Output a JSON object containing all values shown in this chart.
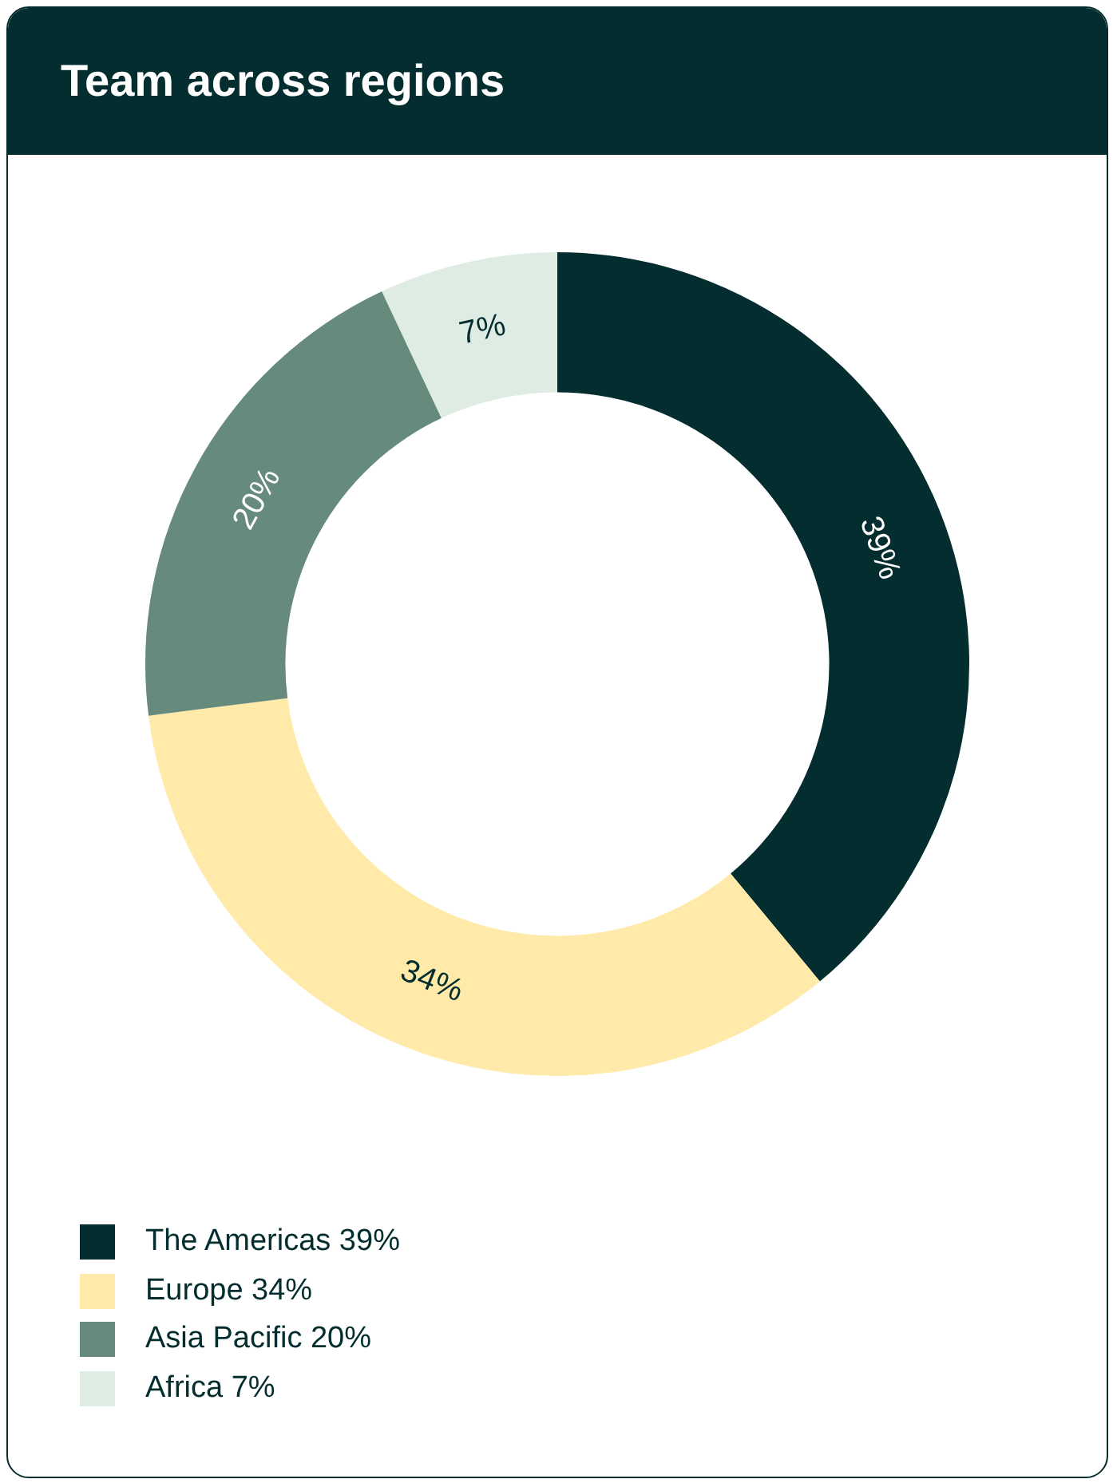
{
  "chart_data": {
    "type": "donut",
    "title": "Team across regions",
    "categories": [
      "The Americas",
      "Europe",
      "Asia Pacific",
      "Africa"
    ],
    "values": [
      39,
      34,
      20,
      7
    ],
    "colors": [
      "#032d2e",
      "#ffeaaa",
      "#668b7c",
      "#dfece4"
    ],
    "value_labels": [
      "39%",
      "34%",
      "20%",
      "7%"
    ],
    "legend": "bottom"
  }
}
